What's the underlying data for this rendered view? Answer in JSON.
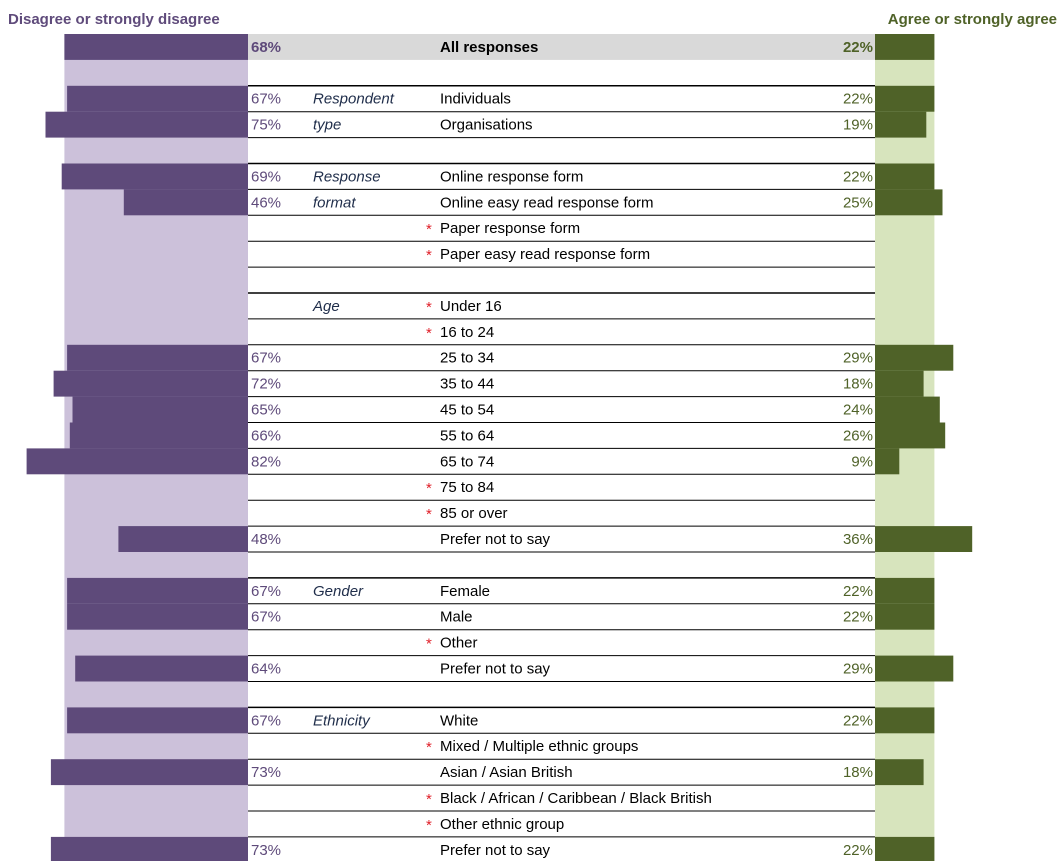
{
  "chart_data": {
    "type": "diverging-bar",
    "categories": [
      "All responses",
      null,
      "Individuals",
      "Organisations",
      null,
      "Online response form",
      "Online easy read response form",
      "Paper response form",
      "Paper easy read response form",
      null,
      "Under 16",
      "16 to 24",
      "25 to 34",
      "35 to 44",
      "45 to 54",
      "55 to 64",
      "65 to 74",
      "75 to 84",
      "85 or over",
      "Prefer not to say",
      null,
      "Female",
      "Male",
      "Other",
      "Prefer not to say",
      null,
      "White",
      "Mixed / Multiple ethnic groups",
      "Asian / Asian British",
      "Black / African / Caribbean / Black British",
      "Other ethnic group",
      "Prefer not to say"
    ],
    "groups": [
      null,
      null,
      "Respondent",
      "type",
      null,
      "Response",
      "format",
      null,
      null,
      null,
      "Age",
      null,
      null,
      null,
      null,
      null,
      null,
      null,
      null,
      null,
      null,
      "Gender",
      null,
      null,
      null,
      null,
      "Ethnicity",
      null,
      null,
      null,
      null,
      null
    ],
    "notes": [
      null,
      null,
      null,
      null,
      null,
      null,
      null,
      "*",
      "*",
      null,
      "*",
      "*",
      null,
      null,
      null,
      null,
      null,
      "*",
      "*",
      null,
      null,
      null,
      null,
      "*",
      null,
      null,
      null,
      "*",
      null,
      "*",
      "*",
      null
    ],
    "series": [
      {
        "name": "Disagree or strongly disagree",
        "color": "#5e4a7a",
        "band_color": "#ccc1da",
        "values": [
          68,
          null,
          67,
          75,
          null,
          69,
          46,
          null,
          null,
          null,
          null,
          null,
          67,
          72,
          65,
          66,
          82,
          null,
          null,
          48,
          null,
          67,
          67,
          null,
          64,
          null,
          67,
          null,
          73,
          null,
          null,
          73
        ],
        "value_labels": [
          "68%",
          null,
          "67%",
          "75%",
          null,
          "69%",
          "46%",
          null,
          null,
          null,
          null,
          null,
          "67%",
          "72%",
          "65%",
          "66%",
          "82%",
          null,
          null,
          "48%",
          null,
          "67%",
          "67%",
          null,
          "64%",
          null,
          "67%",
          null,
          "73%",
          null,
          null,
          "73%"
        ]
      },
      {
        "name": "Agree or strongly agree",
        "color": "#4f6228",
        "band_color": "#d7e4bd",
        "values": [
          22,
          null,
          22,
          19,
          null,
          22,
          25,
          null,
          null,
          null,
          null,
          null,
          29,
          18,
          24,
          26,
          9,
          null,
          null,
          36,
          null,
          22,
          22,
          null,
          29,
          null,
          22,
          null,
          18,
          null,
          null,
          22
        ],
        "value_labels": [
          "22%",
          null,
          "22%",
          "19%",
          null,
          "22%",
          "25%",
          null,
          null,
          null,
          null,
          null,
          "29%",
          "18%",
          "24%",
          "26%",
          "9%",
          null,
          null,
          "36%",
          null,
          "22%",
          "22%",
          null,
          "29%",
          null,
          "22%",
          null,
          "18%",
          null,
          null,
          "22%"
        ]
      }
    ]
  }
}
